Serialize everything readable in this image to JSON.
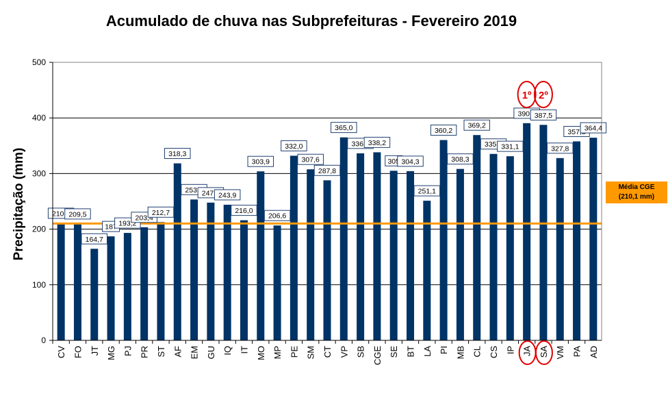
{
  "chart_data": {
    "type": "bar",
    "title": "Acumulado de chuva nas Subprefeituras - Fevereiro 2019",
    "xlabel": "",
    "ylabel": "Precipitação (mm)",
    "ylim": [
      0,
      500
    ],
    "yticks": [
      0,
      100,
      200,
      300,
      400,
      500
    ],
    "grid": true,
    "categories": [
      "CV",
      "FO",
      "JT",
      "MG",
      "PJ",
      "PR",
      "ST",
      "AF",
      "EM",
      "GU",
      "IQ",
      "IT",
      "MO",
      "MP",
      "PE",
      "SM",
      "CT",
      "VP",
      "SB",
      "CGE",
      "SE",
      "BT",
      "LA",
      "PI",
      "MB",
      "CL",
      "CS",
      "IP",
      "JA",
      "SA",
      "VM",
      "PA",
      "AD"
    ],
    "values": [
      210.7,
      209.5,
      164.7,
      187.0,
      193.2,
      203.4,
      212.7,
      318.3,
      253.3,
      247.7,
      243.9,
      216.0,
      303.9,
      206.6,
      332.0,
      307.6,
      287.8,
      365.0,
      336.4,
      338.2,
      305.0,
      304.3,
      251.1,
      360.2,
      308.3,
      369.2,
      335.3,
      331.1,
      390.6,
      387.5,
      327.8,
      357.8,
      364.4
    ],
    "value_labels": [
      "210,7",
      "209,5",
      "164,7",
      "187",
      "193,2",
      "203,4",
      "212,7",
      "318,3",
      "253,3",
      "247,7",
      "243,9",
      "216,0",
      "303,9",
      "206,6",
      "332,0",
      "307,6",
      "287,8",
      "365,0",
      "336,4",
      "338,2",
      "305",
      "304,3",
      "251,1",
      "360,2",
      "308,3",
      "369,2",
      "335,3",
      "331,1",
      "390,6",
      "387,5",
      "327,8",
      "357,8",
      "364,4"
    ],
    "bar_color": "#003366",
    "average_line": {
      "value": 210.1,
      "color": "#ff9900",
      "label_line1": "Média CGE",
      "label_line2": "(210,1 mm)"
    },
    "rank_markers": [
      {
        "category": "JA",
        "label": "1º",
        "color": "#e00000"
      },
      {
        "category": "SA",
        "label": "2º",
        "color": "#e00000"
      }
    ]
  }
}
